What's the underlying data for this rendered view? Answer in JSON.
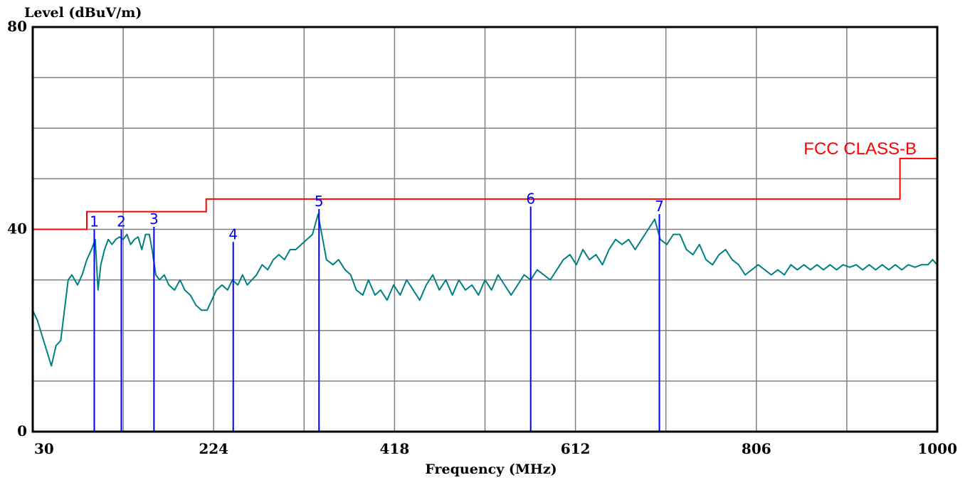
{
  "chart_data": {
    "type": "line",
    "title": "",
    "xlabel": "Frequency (MHz)",
    "ylabel": "Level (dBuV/m)",
    "xlim": [
      30,
      1000
    ],
    "ylim": [
      0,
      80
    ],
    "x_ticks": [
      30,
      224,
      418,
      612,
      806,
      1000
    ],
    "x_tick_labels": [
      "30",
      "224",
      "418",
      "612",
      "806",
      "1000"
    ],
    "y_ticks": [
      0,
      40,
      80
    ],
    "y_tick_labels": [
      "0",
      "40",
      "80"
    ],
    "grid": true,
    "colors": {
      "trace": "#008080",
      "limit": "#ff0000",
      "markers": "#0000ff",
      "grid": "#808080",
      "frame": "#000000"
    },
    "limit_line": {
      "label": "FCC CLASS-B",
      "points": [
        [
          30,
          40
        ],
        [
          88,
          40
        ],
        [
          88,
          43.5
        ],
        [
          216,
          43.5
        ],
        [
          216,
          46
        ],
        [
          960,
          46
        ],
        [
          960,
          54
        ],
        [
          1000,
          54
        ]
      ]
    },
    "series": [
      {
        "values": [
          [
            30,
            24
          ],
          [
            35,
            22
          ],
          [
            40,
            19
          ],
          [
            45,
            16
          ],
          [
            50,
            13
          ],
          [
            55,
            17
          ],
          [
            60,
            18
          ],
          [
            64,
            24
          ],
          [
            68,
            30
          ],
          [
            72,
            31
          ],
          [
            78,
            29
          ],
          [
            83,
            31
          ],
          [
            88,
            34
          ],
          [
            93,
            36
          ],
          [
            97,
            38
          ],
          [
            100,
            28
          ],
          [
            103,
            33
          ],
          [
            107,
            36
          ],
          [
            111,
            38
          ],
          [
            115,
            37
          ],
          [
            119,
            38
          ],
          [
            123,
            38.5
          ],
          [
            127,
            38
          ],
          [
            131,
            39
          ],
          [
            135,
            37
          ],
          [
            139,
            38
          ],
          [
            143,
            38.5
          ],
          [
            147,
            36
          ],
          [
            151,
            39
          ],
          [
            155,
            39
          ],
          [
            158,
            36
          ],
          [
            162,
            31
          ],
          [
            166,
            30
          ],
          [
            171,
            31
          ],
          [
            176,
            29
          ],
          [
            182,
            28
          ],
          [
            188,
            30
          ],
          [
            193,
            28
          ],
          [
            199,
            27
          ],
          [
            205,
            25
          ],
          [
            211,
            24
          ],
          [
            217,
            24
          ],
          [
            222,
            26
          ],
          [
            227,
            28
          ],
          [
            233,
            29
          ],
          [
            239,
            28
          ],
          [
            244,
            30
          ],
          [
            250,
            29
          ],
          [
            255,
            31
          ],
          [
            260,
            29
          ],
          [
            265,
            30
          ],
          [
            270,
            31
          ],
          [
            276,
            33
          ],
          [
            282,
            32
          ],
          [
            288,
            34
          ],
          [
            294,
            35
          ],
          [
            300,
            34
          ],
          [
            306,
            36
          ],
          [
            312,
            36
          ],
          [
            318,
            37
          ],
          [
            324,
            38
          ],
          [
            330,
            39
          ],
          [
            336,
            43
          ],
          [
            340,
            39
          ],
          [
            345,
            34
          ],
          [
            352,
            33
          ],
          [
            358,
            34
          ],
          [
            365,
            32
          ],
          [
            371,
            31
          ],
          [
            377,
            28
          ],
          [
            384,
            27
          ],
          [
            390,
            30
          ],
          [
            397,
            27
          ],
          [
            403,
            28
          ],
          [
            410,
            26
          ],
          [
            417,
            29
          ],
          [
            424,
            27
          ],
          [
            431,
            30
          ],
          [
            438,
            28
          ],
          [
            445,
            26
          ],
          [
            452,
            29
          ],
          [
            459,
            31
          ],
          [
            466,
            28
          ],
          [
            473,
            30
          ],
          [
            480,
            27
          ],
          [
            487,
            30
          ],
          [
            494,
            28
          ],
          [
            501,
            29
          ],
          [
            508,
            27
          ],
          [
            515,
            30
          ],
          [
            522,
            28
          ],
          [
            529,
            31
          ],
          [
            536,
            29
          ],
          [
            543,
            27
          ],
          [
            550,
            29
          ],
          [
            557,
            31
          ],
          [
            564,
            30
          ],
          [
            571,
            32
          ],
          [
            578,
            31
          ],
          [
            585,
            30
          ],
          [
            592,
            32
          ],
          [
            599,
            34
          ],
          [
            606,
            35
          ],
          [
            613,
            33
          ],
          [
            620,
            36
          ],
          [
            627,
            34
          ],
          [
            634,
            35
          ],
          [
            641,
            33
          ],
          [
            648,
            36
          ],
          [
            655,
            38
          ],
          [
            662,
            37
          ],
          [
            669,
            38
          ],
          [
            676,
            36
          ],
          [
            683,
            38
          ],
          [
            690,
            40
          ],
          [
            697,
            42
          ],
          [
            703,
            38
          ],
          [
            710,
            37
          ],
          [
            717,
            39
          ],
          [
            724,
            39
          ],
          [
            731,
            36
          ],
          [
            738,
            35
          ],
          [
            745,
            37
          ],
          [
            752,
            34
          ],
          [
            759,
            33
          ],
          [
            766,
            35
          ],
          [
            773,
            36
          ],
          [
            780,
            34
          ],
          [
            787,
            33
          ],
          [
            794,
            31
          ],
          [
            801,
            32
          ],
          [
            808,
            33
          ],
          [
            815,
            32
          ],
          [
            822,
            31
          ],
          [
            829,
            32
          ],
          [
            836,
            31
          ],
          [
            843,
            33
          ],
          [
            850,
            32
          ],
          [
            857,
            33
          ],
          [
            864,
            32
          ],
          [
            871,
            33
          ],
          [
            878,
            32
          ],
          [
            885,
            33
          ],
          [
            892,
            32
          ],
          [
            899,
            33
          ],
          [
            906,
            32.5
          ],
          [
            913,
            33
          ],
          [
            920,
            32
          ],
          [
            927,
            33
          ],
          [
            934,
            32
          ],
          [
            941,
            33
          ],
          [
            948,
            32
          ],
          [
            955,
            33
          ],
          [
            962,
            32
          ],
          [
            969,
            33
          ],
          [
            976,
            32.5
          ],
          [
            983,
            33
          ],
          [
            990,
            33
          ],
          [
            995,
            34
          ],
          [
            1000,
            33
          ]
        ]
      }
    ],
    "markers": [
      {
        "label": "1",
        "x": 96,
        "y": 40
      },
      {
        "label": "2",
        "x": 125,
        "y": 40
      },
      {
        "label": "3",
        "x": 160,
        "y": 40.5
      },
      {
        "label": "4",
        "x": 245,
        "y": 37.5
      },
      {
        "label": "5",
        "x": 337,
        "y": 44
      },
      {
        "label": "6",
        "x": 564,
        "y": 44.5
      },
      {
        "label": "7",
        "x": 702,
        "y": 43
      }
    ]
  }
}
